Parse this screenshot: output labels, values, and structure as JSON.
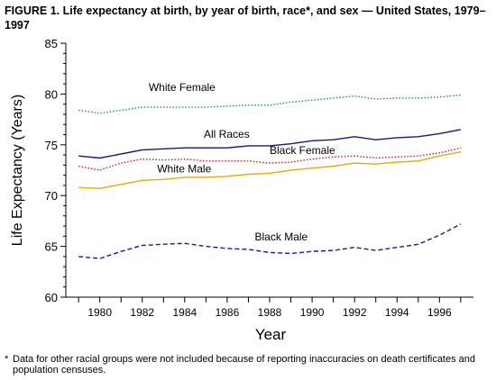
{
  "figure_title": "FIGURE 1. Life expectancy at birth, by year of birth, race*, and sex — United States, 1979–1997",
  "footnote": {
    "mark": "*",
    "text": "Data for other racial groups were not included because of reporting inaccuracies on death certificates and population censuses."
  },
  "chart_data": {
    "type": "line",
    "xlabel": "Year",
    "ylabel": "Life Expectancy (Years)",
    "xlim": [
      1979,
      1997
    ],
    "ylim": [
      60,
      85
    ],
    "x_ticks": [
      1980,
      1982,
      1984,
      1986,
      1988,
      1990,
      1992,
      1994,
      1996
    ],
    "y_ticks": [
      60,
      65,
      70,
      75,
      80,
      85
    ],
    "grid": false,
    "legend": "inline labels",
    "x": [
      1979,
      1980,
      1981,
      1982,
      1983,
      1984,
      1985,
      1986,
      1987,
      1988,
      1989,
      1990,
      1991,
      1992,
      1993,
      1994,
      1995,
      1996,
      1997
    ],
    "series": [
      {
        "name": "White Female",
        "color": "#1a8a8a",
        "dash": "dotted",
        "values": [
          78.4,
          78.1,
          78.4,
          78.7,
          78.7,
          78.7,
          78.7,
          78.8,
          78.9,
          78.9,
          79.2,
          79.4,
          79.6,
          79.8,
          79.5,
          79.6,
          79.6,
          79.7,
          79.9
        ]
      },
      {
        "name": "All Races",
        "color": "#1a1a7a",
        "dash": "solid",
        "values": [
          73.9,
          73.7,
          74.1,
          74.5,
          74.6,
          74.7,
          74.7,
          74.7,
          74.9,
          74.9,
          75.1,
          75.4,
          75.5,
          75.8,
          75.5,
          75.7,
          75.8,
          76.1,
          76.5
        ]
      },
      {
        "name": "Black Female",
        "color": "#cc1a1a",
        "dash": "dotted",
        "values": [
          72.9,
          72.5,
          73.2,
          73.6,
          73.5,
          73.6,
          73.4,
          73.4,
          73.4,
          73.2,
          73.3,
          73.6,
          73.8,
          73.9,
          73.7,
          73.8,
          73.9,
          74.2,
          74.7
        ]
      },
      {
        "name": "White Male",
        "color": "#e0b000",
        "dash": "solid",
        "values": [
          70.8,
          70.7,
          71.1,
          71.5,
          71.6,
          71.8,
          71.8,
          71.9,
          72.1,
          72.2,
          72.5,
          72.7,
          72.9,
          73.2,
          73.1,
          73.3,
          73.4,
          73.9,
          74.3
        ]
      },
      {
        "name": "Black Male",
        "color": "#1a1aa0",
        "dash": "dashed",
        "values": [
          64.0,
          63.8,
          64.5,
          65.1,
          65.2,
          65.3,
          65.0,
          64.8,
          64.7,
          64.4,
          64.3,
          64.5,
          64.6,
          64.9,
          64.6,
          64.9,
          65.2,
          66.1,
          67.2
        ]
      }
    ],
    "annotations": [
      {
        "text": "White Female",
        "x": 1982.3,
        "y": 80.3
      },
      {
        "text": "All Races",
        "x": 1984.9,
        "y": 75.7
      },
      {
        "text": "Black Female",
        "x": 1988.0,
        "y": 74.1
      },
      {
        "text": "White Male",
        "x": 1982.7,
        "y": 72.3
      },
      {
        "text": "Black Male",
        "x": 1987.3,
        "y": 65.6
      }
    ]
  }
}
